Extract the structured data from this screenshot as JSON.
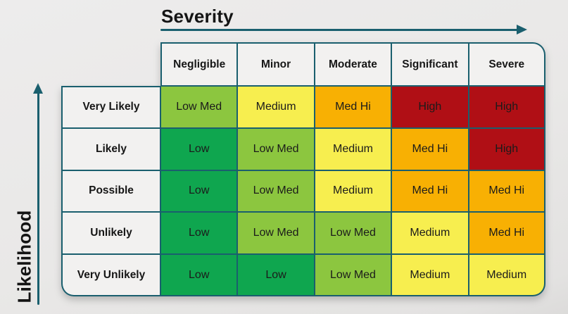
{
  "axes": {
    "x_title": "Severity",
    "y_title": "Likelihood"
  },
  "matrix": {
    "columns": [
      "Negligible",
      "Minor",
      "Moderate",
      "Significant",
      "Severe"
    ],
    "rows": [
      "Very Likely",
      "Likely",
      "Possible",
      "Unlikely",
      "Very Unlikely"
    ],
    "cells": [
      [
        {
          "label": "Low Med",
          "color": "#8cc63f"
        },
        {
          "label": "Medium",
          "color": "#f7ee4f"
        },
        {
          "label": "Med Hi",
          "color": "#f8b003"
        },
        {
          "label": "High",
          "color": "#b00f15"
        },
        {
          "label": "High",
          "color": "#b00f15"
        }
      ],
      [
        {
          "label": "Low",
          "color": "#0fa64f"
        },
        {
          "label": "Low Med",
          "color": "#8cc63f"
        },
        {
          "label": "Medium",
          "color": "#f7ee4f"
        },
        {
          "label": "Med Hi",
          "color": "#f8b003"
        },
        {
          "label": "High",
          "color": "#b00f15"
        }
      ],
      [
        {
          "label": "Low",
          "color": "#0fa64f"
        },
        {
          "label": "Low Med",
          "color": "#8cc63f"
        },
        {
          "label": "Medium",
          "color": "#f7ee4f"
        },
        {
          "label": "Med Hi",
          "color": "#f8b003"
        },
        {
          "label": "Med Hi",
          "color": "#f8b003"
        }
      ],
      [
        {
          "label": "Low",
          "color": "#0fa64f"
        },
        {
          "label": "Low Med",
          "color": "#8cc63f"
        },
        {
          "label": "Low Med",
          "color": "#8cc63f"
        },
        {
          "label": "Medium",
          "color": "#f7ee4f"
        },
        {
          "label": "Med Hi",
          "color": "#f8b003"
        }
      ],
      [
        {
          "label": "Low",
          "color": "#0fa64f"
        },
        {
          "label": "Low",
          "color": "#0fa64f"
        },
        {
          "label": "Low Med",
          "color": "#8cc63f"
        },
        {
          "label": "Medium",
          "color": "#f7ee4f"
        },
        {
          "label": "Medium",
          "color": "#f7ee4f"
        }
      ]
    ]
  },
  "colors": {
    "border": "#1a5f6e",
    "arrow": "#1a5f6e",
    "header_bg": "#f2f1f0",
    "page_bg": "#e9e8e7",
    "cell_text": "#1b1b1b",
    "low": "#0fa64f",
    "low_med": "#8cc63f",
    "medium": "#f7ee4f",
    "med_hi": "#f8b003",
    "high": "#b00f15"
  },
  "chart_data": {
    "type": "heatmap",
    "title": "",
    "x_axis_label": "Severity",
    "y_axis_label": "Likelihood",
    "columns": [
      "Negligible",
      "Minor",
      "Moderate",
      "Significant",
      "Severe"
    ],
    "rows": [
      "Very Likely",
      "Likely",
      "Possible",
      "Unlikely",
      "Very Unlikely"
    ],
    "values": [
      [
        "Low Med",
        "Medium",
        "Med Hi",
        "High",
        "High"
      ],
      [
        "Low",
        "Low Med",
        "Medium",
        "Med Hi",
        "High"
      ],
      [
        "Low",
        "Low Med",
        "Medium",
        "Med Hi",
        "Med Hi"
      ],
      [
        "Low",
        "Low Med",
        "Low Med",
        "Medium",
        "Med Hi"
      ],
      [
        "Low",
        "Low",
        "Low Med",
        "Medium",
        "Medium"
      ]
    ],
    "level_scale": [
      "Low",
      "Low Med",
      "Medium",
      "Med Hi",
      "High"
    ],
    "level_colors": {
      "Low": "#0fa64f",
      "Low Med": "#8cc63f",
      "Medium": "#f7ee4f",
      "Med Hi": "#f8b003",
      "High": "#b00f15"
    },
    "legend_position": "none",
    "grid": true
  }
}
